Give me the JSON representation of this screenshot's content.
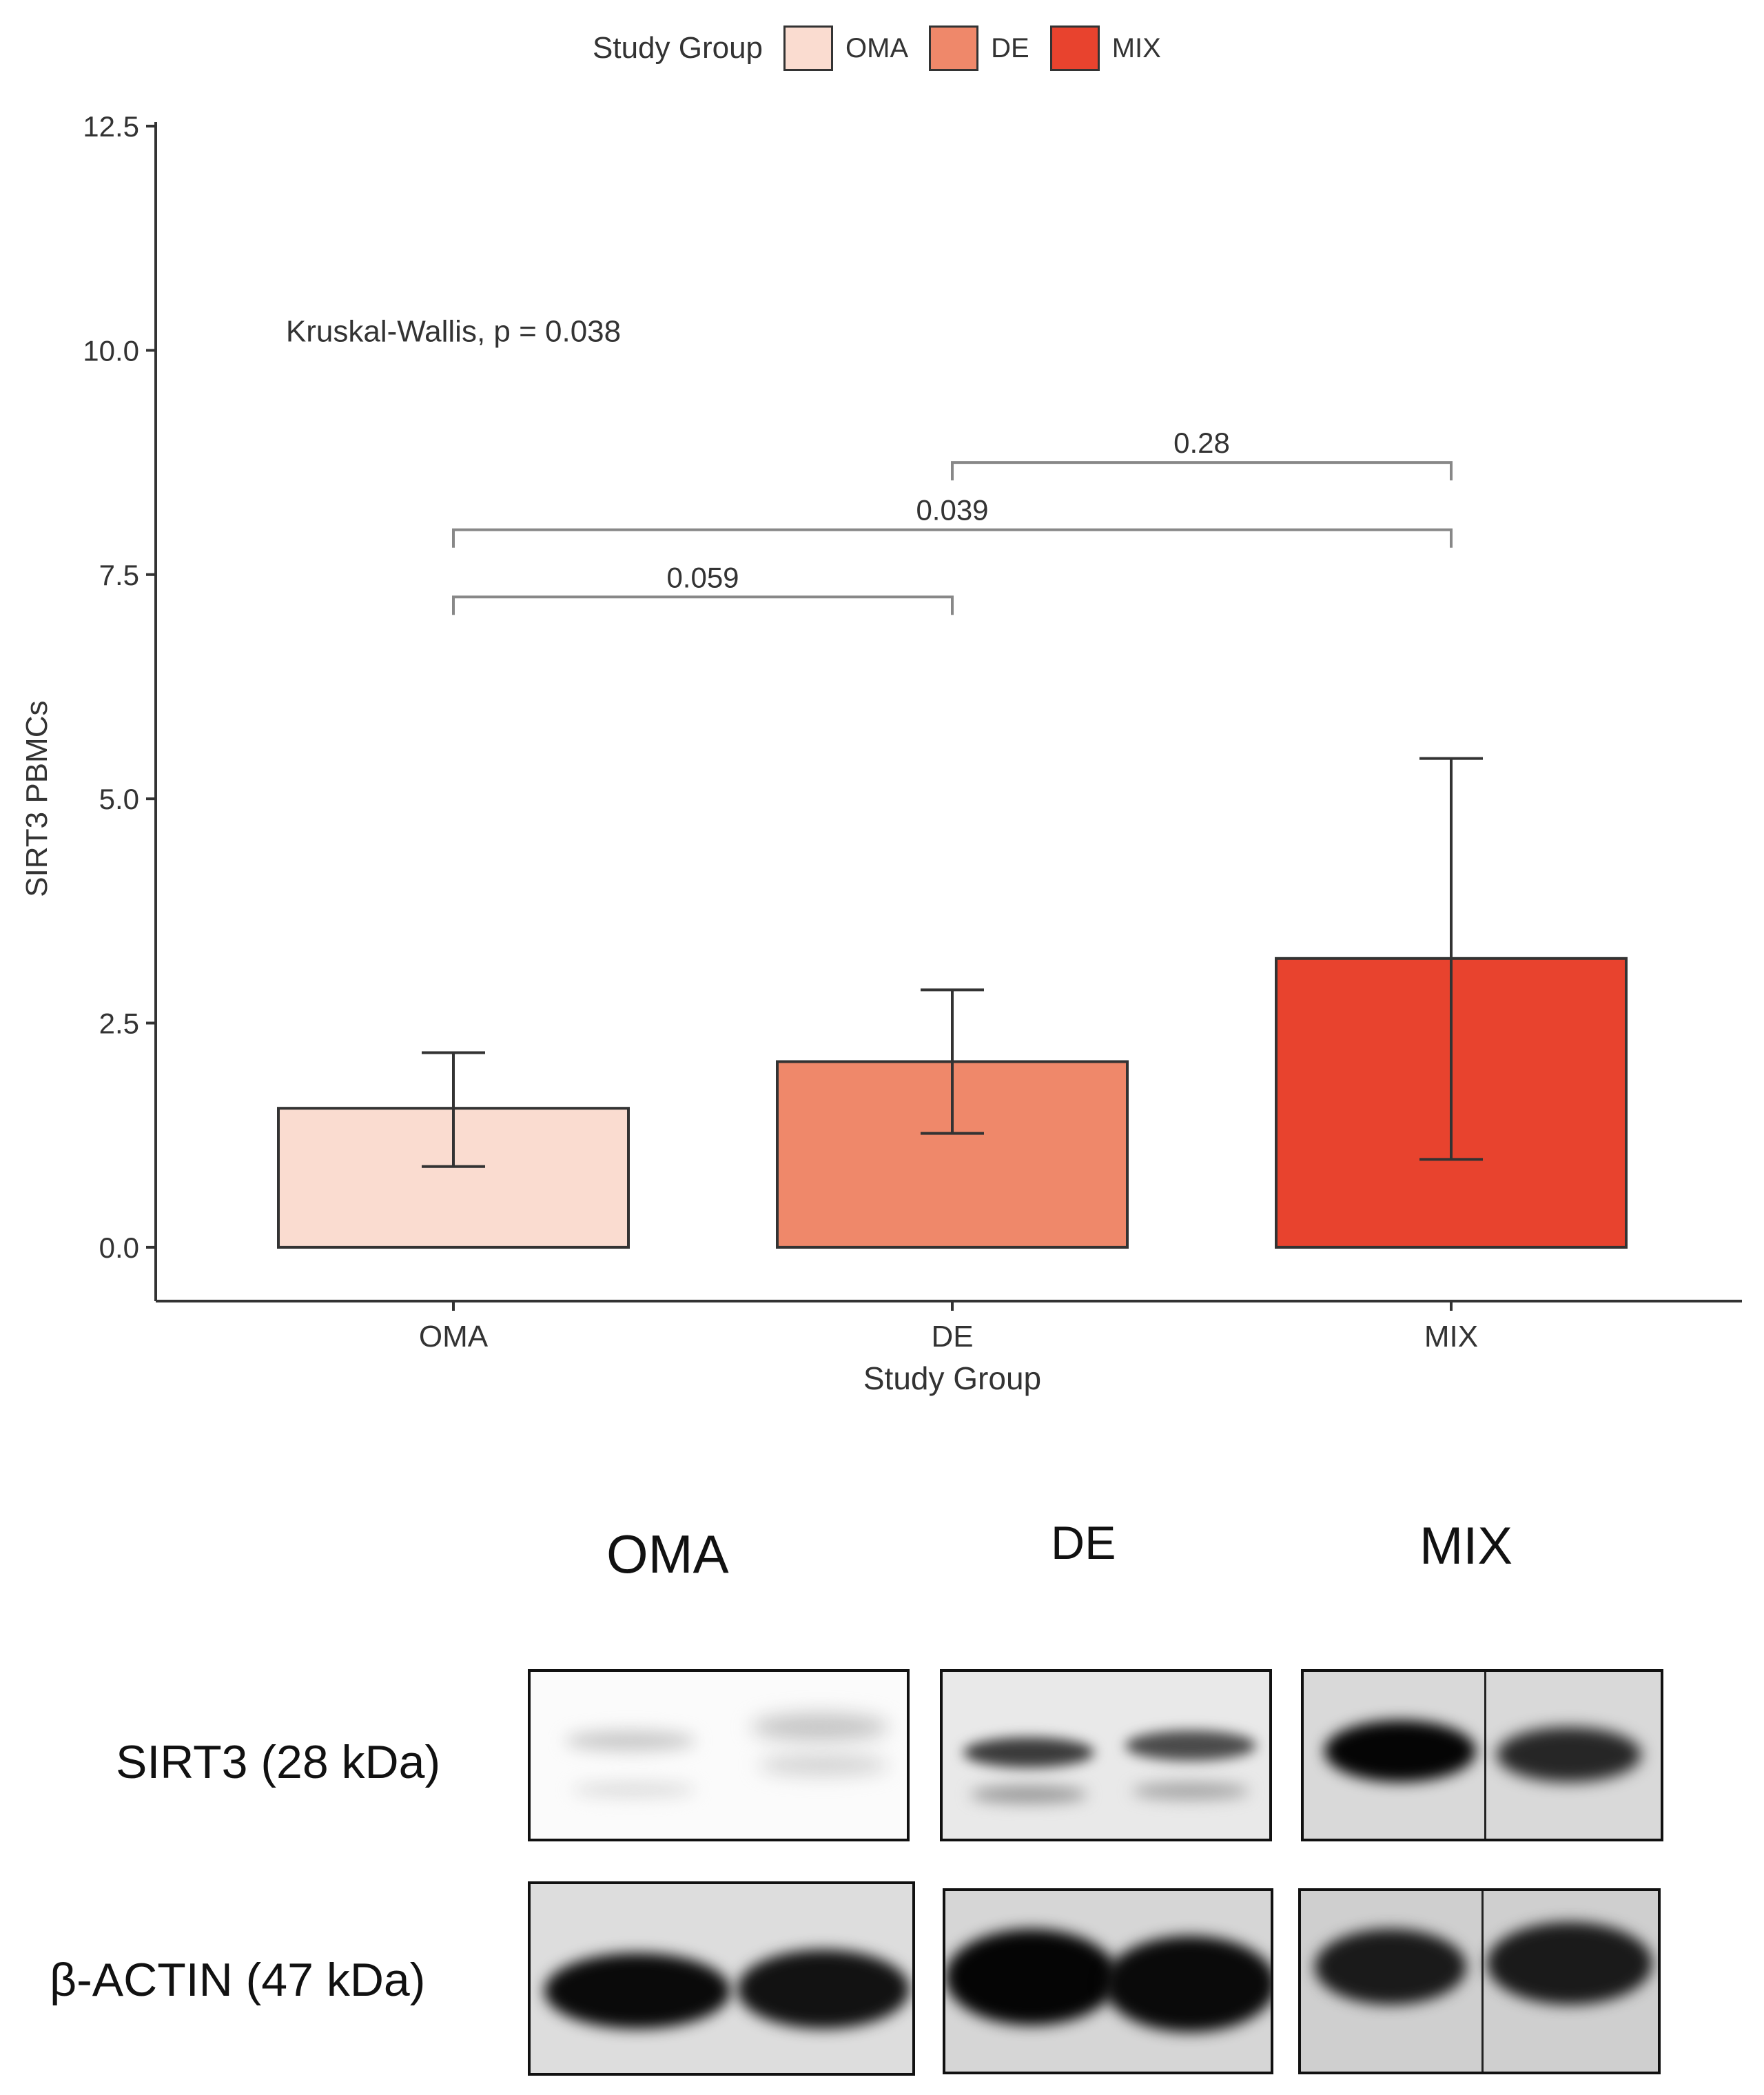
{
  "chart_data": {
    "type": "bar",
    "legend": {
      "title": "Study Group",
      "position": "top",
      "entries": [
        {
          "label": "OMA",
          "color": "#fadcd0"
        },
        {
          "label": "DE",
          "color": "#ef886a"
        },
        {
          "label": "MIX",
          "color": "#e8432e"
        }
      ]
    },
    "categories": [
      "OMA",
      "DE",
      "MIX"
    ],
    "values": [
      1.55,
      2.07,
      3.22
    ],
    "error_low": [
      0.9,
      1.27,
      0.98
    ],
    "error_high": [
      2.17,
      2.87,
      5.45
    ],
    "colors": [
      "#fadcd0",
      "#ef886a",
      "#e8432e"
    ],
    "xlabel": "Study Group",
    "ylabel": "SIRT3 PBMCs",
    "ylim": [
      -0.6,
      12.6
    ],
    "yticks": [
      "0.0",
      "2.5",
      "5.0",
      "7.5",
      "10.0",
      "12.5"
    ],
    "ytick_values": [
      0,
      2.5,
      5.0,
      7.5,
      10.0,
      12.5
    ],
    "annotation": "Kruskal-Wallis, p = 0.038",
    "annotation_anchor": {
      "x_category": 0,
      "y": 10.1
    },
    "brackets": [
      {
        "from": 0,
        "to": 1,
        "y": 7.25,
        "label": "0.059"
      },
      {
        "from": 0,
        "to": 2,
        "y": 8.0,
        "label": "0.039"
      },
      {
        "from": 1,
        "to": 2,
        "y": 8.75,
        "label": "0.28"
      }
    ]
  },
  "blot": {
    "group_labels": [
      "OMA",
      "DE",
      "MIX"
    ],
    "row_labels": [
      "SIRT3 (28 kDa)",
      "β-ACTIN (47 kDa)"
    ]
  }
}
